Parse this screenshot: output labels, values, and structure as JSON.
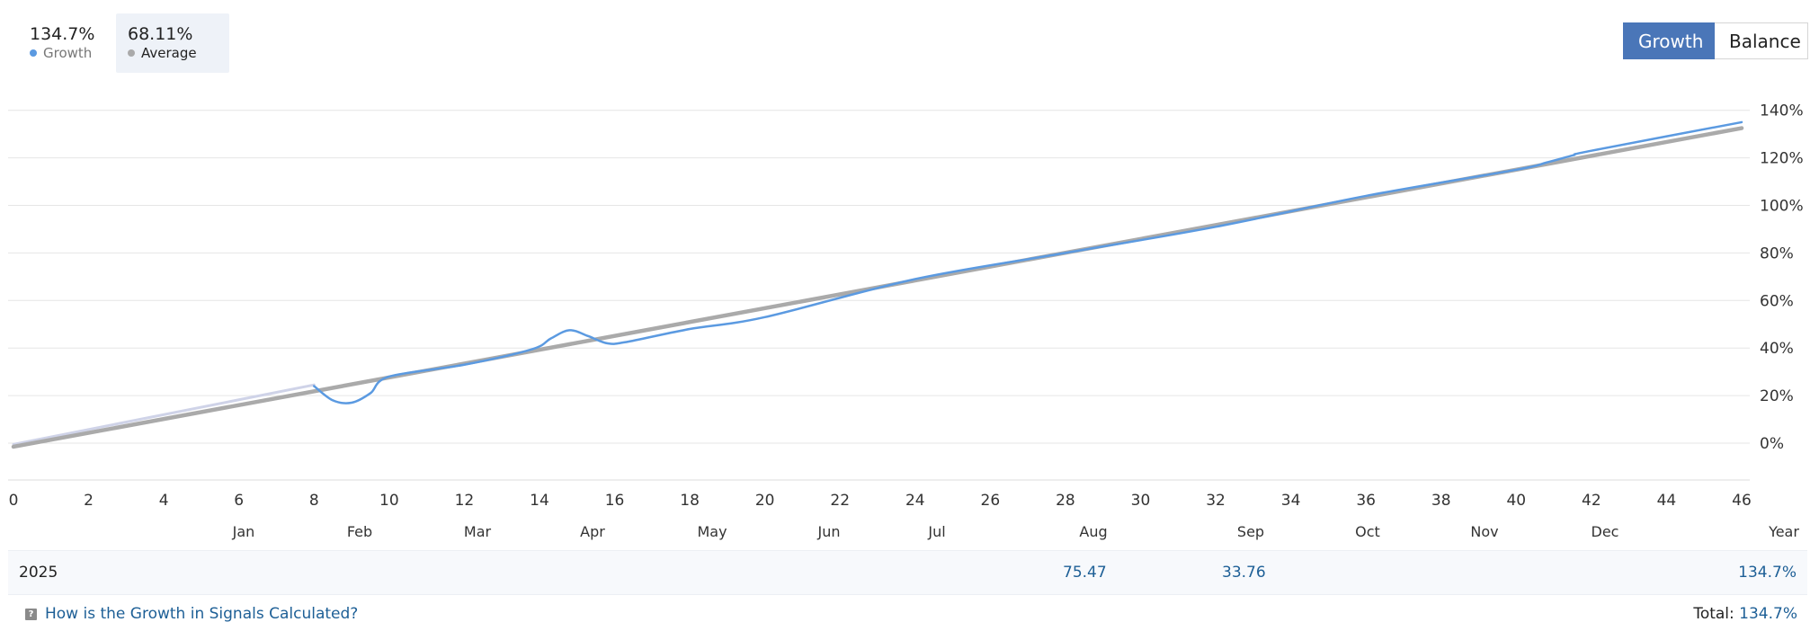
{
  "legend": {
    "growth": {
      "value": "134.7%",
      "label": "Growth",
      "color": "#5b9ae1"
    },
    "average": {
      "value": "68.11%",
      "label": "Average",
      "color": "#aaaaaa"
    }
  },
  "toggle": {
    "growth_label": "Growth",
    "balance_label": "Balance",
    "active": "Growth"
  },
  "chart_data": {
    "type": "line",
    "x_ticks": [
      "0",
      "2",
      "4",
      "6",
      "8",
      "10",
      "12",
      "14",
      "16",
      "18",
      "20",
      "22",
      "24",
      "26",
      "28",
      "30",
      "32",
      "34",
      "36",
      "38",
      "40",
      "42",
      "44",
      "46"
    ],
    "y_ticks": [
      "140%",
      "120%",
      "100%",
      "80%",
      "60%",
      "40%",
      "20%",
      "0%"
    ],
    "months": [
      "Jan",
      "Feb",
      "Mar",
      "Apr",
      "May",
      "Jun",
      "Jul",
      "Aug",
      "Sep",
      "Oct",
      "Nov",
      "Dec",
      "Year"
    ],
    "xlim": [
      0,
      46
    ],
    "ylim": [
      -15,
      145
    ],
    "series": [
      {
        "name": "Growth",
        "color": "#5b9ae1",
        "x": [
          8,
          8.5,
          9,
          9.5,
          10,
          12,
          13.8,
          14.3,
          14.8,
          15.3,
          15.8,
          16.3,
          18,
          20,
          24,
          28,
          32,
          36,
          40,
          40.8,
          41.5,
          42,
          46
        ],
        "y": [
          24,
          18,
          17,
          21,
          28,
          33,
          39.5,
          44,
          47.5,
          45,
          42,
          42.5,
          48,
          53,
          69,
          80,
          91,
          104,
          115,
          118,
          121,
          123,
          135
        ]
      },
      {
        "name": "Average",
        "color": "#aaaaaa",
        "x": [
          0,
          46
        ],
        "y": [
          -1.5,
          132.5
        ]
      },
      {
        "color": "#cfd3e8",
        "x": [
          0,
          8
        ],
        "y": [
          -0.5,
          24.5
        ]
      }
    ]
  },
  "year_row": {
    "year": "2025",
    "aug": "75.47",
    "sep": "33.76",
    "total": "134.7%"
  },
  "footer": {
    "help_text": "How is the Growth in Signals Calculated?",
    "help_icon": "help-icon",
    "total_label": "Total:",
    "total_value": "134.7%"
  }
}
